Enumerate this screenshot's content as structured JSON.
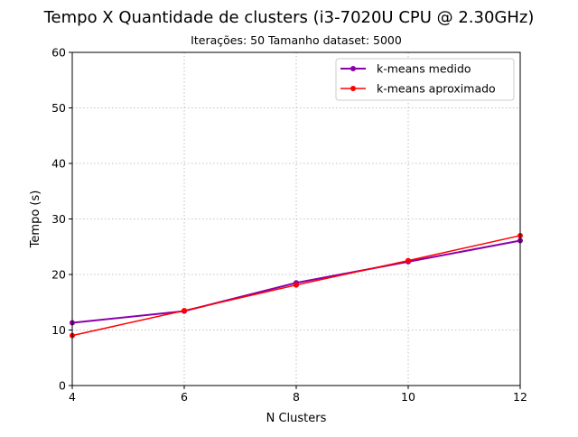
{
  "chart_data": {
    "type": "line",
    "title": "Tempo X Quantidade de clusters (i3-7020U CPU @ 2.30GHz)",
    "subtitle": "Iterações: 50 Tamanho dataset: 5000",
    "xlabel": "N Clusters",
    "ylabel": "Tempo (s)",
    "xlim": [
      4,
      12
    ],
    "ylim": [
      0,
      60
    ],
    "x_ticks": [
      4,
      6,
      8,
      10,
      12
    ],
    "y_ticks": [
      0,
      10,
      20,
      30,
      40,
      50,
      60
    ],
    "grid": true,
    "legend_position": "top-right",
    "x": [
      4,
      6,
      8,
      10,
      12
    ],
    "series": [
      {
        "name": "k-means medido",
        "color": "#8b00a8",
        "marker": "circle",
        "values": [
          11.3,
          13.4,
          18.5,
          22.3,
          26.1
        ]
      },
      {
        "name": "k-means aproximado",
        "color": "#ff0000",
        "marker": "circle",
        "values": [
          9.0,
          13.5,
          18.1,
          22.5,
          27.0
        ]
      }
    ]
  }
}
